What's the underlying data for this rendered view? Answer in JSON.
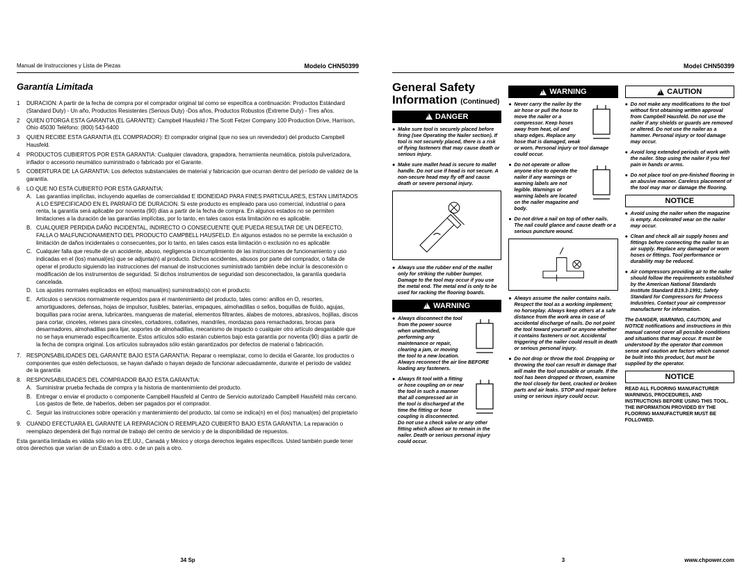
{
  "leftPage": {
    "headerLeft": "Manual de Instrucciones y Lista de Piezas",
    "headerRight": "Modelo CHN50399",
    "sectionTitle": "Garantía Limitada",
    "items": [
      {
        "num": "1",
        "text": "DURACION: A partir de la fecha de compra por el comprador original tal como se especifica a continuación: Productos Estándard (Standard Duty) - Un año, Productos Resistentes (Serious Duty) -Dos años, Productos Robustos (Extreme Duty) - Tres años."
      },
      {
        "num": "2",
        "text": "QUIEN OTORGA ESTA GARANTIA (EL GARANTE): Campbell Hausfeld / The Scott Fetzer Company 100 Production Drive, Harrison, Ohio 45030 Teléfono: (800) 543-6400"
      },
      {
        "num": "3",
        "text": "QUIEN RECIBE ESTA GARANTIA (EL COMPRADOR): El comprador original (que no sea un revendedor) del producto Campbell Hausfeld."
      },
      {
        "num": "4",
        "text": "PRODUCTOS CUBIERTOS POR ESTA GARANTIA: Cualquier clavadora, grapadora, herramienta neumática, pistola pulverizadora, inflador o accesorio neumático suministrado o fabricado por el Garante."
      },
      {
        "num": "5",
        "text": "COBERTURA DE LA GARANTIA: Los defectos substanciales de material y fabricación que ocurran dentro del período de validez de la garantía."
      },
      {
        "num": "6",
        "text": "LO QUE NO ESTA CUBIERTO POR ESTA GARANTIA:",
        "subs": [
          {
            "letter": "A.",
            "text": "Las garantías implícitas, incluyendo aquellas de comercialidad E IDONEIDAD PARA FINES PARTICULARES, ESTAN LIMITADOS A LO ESPECIFICADO EN EL PARRAFO DE DURACION. Si este producto es empleado para uso comercial, industrial o para renta, la garantía será aplicable por noventa (90) días a partir de la fecha de compra. En algunos estados no se permiten limitaciones a la duración de las garantías implícitas, por lo tanto, en tales casos esta limitación no es aplicable."
          },
          {
            "letter": "B.",
            "text": "CUALQUIER PERDIDA DAÑO INCIDENTAL, INDIRECTO O CONSECUENTE QUE PUEDA RESULTAR DE UN DEFECTO, FALLA O MALFUNCIONAMIENTO DEL PRODUCTO CAMPBELL HAUSFELD. En algunos estados no se permite la exclusión o limitación de daños incidentales o consecuentes, por lo tanto, en tales casos esta limitación o exclusión no es aplicable"
          },
          {
            "letter": "C.",
            "text": "Cualquier falla que resulte de un accidente, abuso, negligencia o incumplimiento de las instrucciones de funcionamiento y uso indicadas en el (los) manual(es) que se adjunta(n) al producto. Dichos accidentes, abusos por parte del comprador, o falta de operar el producto siguiendo las instrucciones del manual de instrucciones suministrado también debe incluir la desconexión o modificación de los instrumentos de seguridad. Si dichos instrumentos de seguridad son desconectados, la garantía quedaría cancelada."
          },
          {
            "letter": "D.",
            "text": "Los ajustes normales explicados en el(los) manual(es) suministrado(s) con el producto."
          },
          {
            "letter": "E.",
            "text": "Artículos o servicios normalmente requeridos para el mantenimiento del producto, tales como: anillos en O, resortes, amortiguadores, defensas, hojas de impulsor, fusibles, baterías, empaques, almohadillas o sellos, boquillas de fluído, agujas, boquillas para rociar arena, lubricantes, mangueras de material, elementos filtrantes, álabes de motores, abrasivos, hojillas, discos para cortar, cinceles, retenes para cinceles, cortadores, collarines, mandriles, mordazas para remachadoras, brocas para desarmadores, almohadillas para lijar, soportes de almohadillas, mecanismo de impacto o cualquier otro artículo desgastable que no se haya enumerado específicamente. Estos artículos sólo estarán cubiertos bajo esta garantía por noventa (90) días a partir de la fecha de compra original. Los artículos subrayados sólo están garantizados por defectos de material o fabricación."
          }
        ]
      },
      {
        "num": "7.",
        "text": "RESPONSABILIDADES DEL GARANTE BAJO ESTA GARANTIA: Reparar o reemplazar, como lo decida el Garante, los productos o componentes que estén defectuosos, se hayan dañado o hayan dejado de funcionar adecuadamente, durante el período de validez de la garantía"
      },
      {
        "num": "8.",
        "text": "RESPONSABILIDADES DEL COMPRADOR BAJO ESTA GARANTIA:",
        "subs": [
          {
            "letter": "A.",
            "text": "Suministrar prueba fechada de compra y la historia de mantenimiento del producto."
          },
          {
            "letter": "B.",
            "text": "Entregar o enviar el producto o componente Campbell Hausfeld al Centro de Servicio autorizado Campbell Hausfeld más cercano. Los gastos de flete, de haberlos, deben ser pagados por el comprador."
          },
          {
            "letter": "C.",
            "text": "Seguir las instrucciones sobre operación y mantenimiento del producto, tal como se indica(n) en el (los) manual(es) del propietario"
          }
        ]
      },
      {
        "num": "9.",
        "text": "CUANDO EFECTUARA EL GARANTE LA REPARACION O REEMPLAZO CUBIERTO BAJO ESTA GARANTIA: La reparación o reemplazo dependerá del flujo normal de trabajo del centro de servicio y de la disponibilidad de repuestos."
      }
    ],
    "closing": "Esta garantía limitada es válida sólo en los EE.UU., Canadá y México y otorga derechos legales específicos. Usted también puede tener otros derechos que varían de un Estado a otro. o de un país a otro.",
    "pageNum": "34 Sp"
  },
  "rightPage": {
    "headerRight": "Model CHN50399",
    "title1": "General Safety",
    "title2": "Information",
    "titleCont": "(Continued)",
    "labels": {
      "danger": "DANGER",
      "warning": "WARNING",
      "caution": "CAUTION",
      "notice": "NOTICE"
    },
    "col1_danger": [
      "Make sure tool is securely placed before firing (see Operating the Nailer section). If tool is not securely placed, there is a risk of flying fasteners that may cause death or serious injury.",
      "Make sure mallet head is secure to mallet handle. Do not use if head is not secure. A non-secure head may fly off and cause death or severe personal injury."
    ],
    "col1_after_illus": [
      "Always use the rubber end of the mallet only for striking the rubber bumper. Damage to the tool may occur if you use the metal end. The metal end is only to be used for racking the flooring boards."
    ],
    "col1_warning": [
      "Always disconnect the tool from the power source when unattended, performing any maintenance or repair, clearing a jam, or moving the tool to a new location. Always reconnect the air line BEFORE loading any fasteners.",
      "Always fit tool with a fitting or hose coupling on or near the tool in such a manner that all compressed air in the tool is discharged at the time the fitting or hose coupling is disconnected. Do not use a check valve or any other fitting which allows air to remain in the nailer. Death or serious personal injury could occur."
    ],
    "col2_warning_a": [
      "Never carry the nailer by the air hose or pull the hose to move the nailer or a compressor. Keep hoses away from heat, oil and sharp edges. Replace any hose that is damaged, weak or worn. Personal injury or tool damage could occur.",
      "Do not operate or allow anyone else to operate the nailer if any warnings or warning labels are not legible. Warnings or warning labels are located on the nailer magazine and body.",
      "Do not drive a nail on top of other nails. The nail could glance and cause death or a serious puncture wound."
    ],
    "col2_warning_b": [
      "Always assume the nailer contains nails. Respect the tool as a working implement; no horseplay. Always keep others at a safe distance from the work area in case of accidental discharge of nails. Do not point the tool toward yourself or anyone whether it contains fasteners or not. Accidental triggering of the nailer could result in death or serious personal injury.",
      "Do not drop or throw the tool. Dropping or throwing the tool can result in damage that will make the tool unusable or unsafe. If the tool has been dropped or thrown, examine the tool closely for bent, cracked or broken parts and air leaks. STOP and repair before using or serious injury could occur."
    ],
    "col3_caution": [
      "Do not make any modifications to the tool without first obtaining written approval from Campbell Hausfeld. Do not use the nailer if any shields or guards are removed or altered. Do not use the nailer as a hammer. Personal injury or tool damage may occur.",
      "Avoid long extended periods of work with the nailer. Stop using the nailer if you feel pain in hands or arms.",
      "Do not place tool on pre-finished flooring in an abusive manner. Careless placement of the tool may mar or damage the flooring."
    ],
    "col3_notice1": [
      "Avoid using the nailer when the magazine is empty. Accelerated wear on the nailer may occur.",
      "Clean and check all air supply hoses and fittings before connecting the nailer to an air supply. Replace any damaged or worn hoses or fittings. Tool performance or durability may be reduced.",
      "Air compressors providing air to the nailer should follow the requirements established by the American National Standards Institute Standard B19.3-1991; Safety Standard for Compressors for Process Industries. Contact your air compressor manufacturer for information."
    ],
    "col3_notice_para": "The DANGER, WARNING, CAUTION, and NOTICE notifications and instructions in this manual cannot cover all possible conditions and situations that may occur. It must be understood by the operator that common sense and caution are factors which cannot be built into this product, but must be supplied by the operator.",
    "col3_notice2": "READ ALL FLOORING MANUFACTURER WARNINGS, PROCEDURES, AND INSTRUCTIONS BEFORE USING THIS TOOL. THE INFORMATION PROVIDED BY THE FLOORING MANUFACTURER MUST BE FOLLOWED.",
    "url": "www.chpower.com",
    "pageNum": "3"
  }
}
